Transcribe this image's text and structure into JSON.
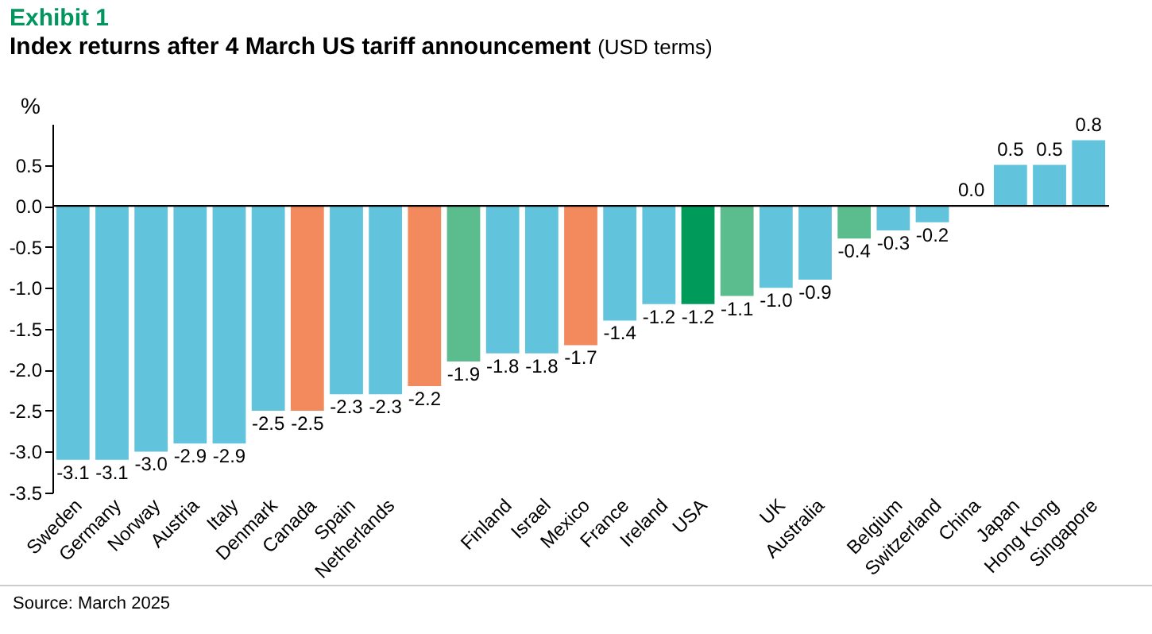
{
  "chart_data": {
    "type": "bar",
    "title": "Index returns after 4 March US tariff announcement",
    "subtitle": "(USD terms)",
    "ylabel": "%",
    "annotations": [
      "Exhibit 1",
      "Source: March 2025"
    ],
    "categories": [
      "Sweden",
      "Germany",
      "Norway",
      "Austria",
      "Italy",
      "Denmark",
      "Canada",
      "Spain",
      "Netherlands",
      null,
      null,
      "Finland",
      "Israel",
      "Mexico",
      "France",
      "Ireland",
      "USA",
      null,
      "UK",
      "Australia",
      null,
      "Belgium",
      "Switzerland",
      "China",
      "Japan",
      "Hong Kong",
      "Singapore"
    ],
    "values": [
      -3.1,
      -3.1,
      -3.0,
      -2.9,
      -2.9,
      -2.5,
      -2.5,
      -2.3,
      -2.3,
      -2.2,
      -1.9,
      -1.8,
      -1.8,
      -1.7,
      -1.4,
      -1.2,
      -1.2,
      -1.1,
      -1.0,
      -0.9,
      -0.4,
      -0.3,
      -0.2,
      0.0,
      0.5,
      0.5,
      0.8
    ],
    "colors": [
      "#62c3dd",
      "#62c3dd",
      "#62c3dd",
      "#62c3dd",
      "#62c3dd",
      "#62c3dd",
      "#f28a5e",
      "#62c3dd",
      "#62c3dd",
      "#f28a5e",
      "#5bbd8e",
      "#62c3dd",
      "#62c3dd",
      "#f28a5e",
      "#62c3dd",
      "#62c3dd",
      "#009a5b",
      "#5bbd8e",
      "#62c3dd",
      "#62c3dd",
      "#5bbd8e",
      "#62c3dd",
      "#62c3dd",
      "#62c3dd",
      "#62c3dd",
      "#62c3dd",
      "#62c3dd"
    ],
    "value_labels": [
      "-3.1",
      "-3.1",
      "-3.0",
      "-2.9",
      "-2.9",
      "-2.5",
      "-2.5",
      "-2.3",
      "-2.3",
      "-2.2",
      "-1.9",
      "-1.8",
      "-1.8",
      "-1.7",
      "-1.4",
      "-1.2",
      "-1.2",
      "-1.1",
      "-1.0",
      "-0.9",
      "-0.4",
      "-0.3",
      "-0.2",
      "0.0",
      "0.5",
      "0.5",
      "0.8"
    ],
    "ref_lines": [
      {
        "axis": "y",
        "value": 0,
        "color": "#000000"
      }
    ],
    "ylim": [
      -3.5,
      1.0
    ],
    "yticks": [
      {
        "value": -3.5,
        "label": "-3.5"
      },
      {
        "value": -3,
        "label": "-3.0"
      },
      {
        "value": -2.5,
        "label": "-2.5"
      },
      {
        "value": -2,
        "label": "-2.0"
      },
      {
        "value": -1.5,
        "label": "-1.5"
      },
      {
        "value": -1,
        "label": "-1.0"
      },
      {
        "value": -0.5,
        "label": "-0.5"
      },
      {
        "value": 0,
        "label": "0.0"
      },
      {
        "value": 0.5,
        "label": "0.5"
      }
    ],
    "data_labels": true,
    "grid": false
  }
}
